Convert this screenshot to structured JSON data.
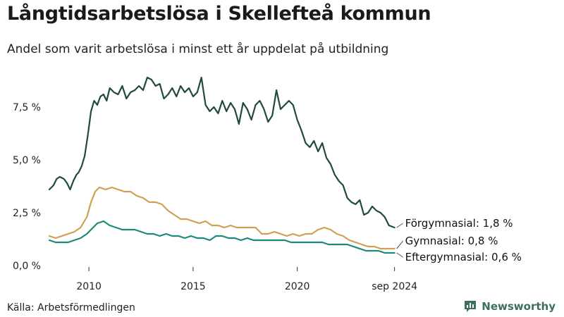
{
  "chart_data": {
    "type": "line",
    "title": "Långtidsarbetslösa i Skellefteå kommun",
    "subtitle": "Andel som varit arbetslösa i minst ett år uppdelat på utbildning",
    "source": "Källa: Arbetsförmedlingen",
    "brand": "Newsworthy",
    "ylim": [
      0,
      9.3
    ],
    "xlim": [
      2008.1,
      2024.75
    ],
    "grid": false,
    "legend_placement": "line-end labels, right",
    "y_ticks": [
      {
        "value": 0,
        "label": "0,0 %"
      },
      {
        "value": 2.5,
        "label": "2,5 %"
      },
      {
        "value": 5.0,
        "label": "5,0 %"
      },
      {
        "value": 7.5,
        "label": "7,5 %"
      }
    ],
    "x_ticks": [
      {
        "value": 2010,
        "label": "2010"
      },
      {
        "value": 2015,
        "label": "2015"
      },
      {
        "value": 2020,
        "label": "2020"
      },
      {
        "value": 2024.67,
        "label": "sep 2024"
      }
    ],
    "series": [
      {
        "name": "Förgymnasial",
        "end_label": "Förgymnasial: 1,8 %",
        "color": "#1f4a3d",
        "x": [
          2008.1,
          2008.3,
          2008.45,
          2008.6,
          2008.8,
          2008.95,
          2009.1,
          2009.25,
          2009.4,
          2009.5,
          2009.65,
          2009.8,
          2009.95,
          2010.1,
          2010.25,
          2010.4,
          2010.55,
          2010.7,
          2010.85,
          2011.0,
          2011.2,
          2011.4,
          2011.6,
          2011.8,
          2012.0,
          2012.2,
          2012.4,
          2012.6,
          2012.8,
          2013.0,
          2013.2,
          2013.4,
          2013.6,
          2013.8,
          2014.0,
          2014.2,
          2014.4,
          2014.6,
          2014.8,
          2015.0,
          2015.2,
          2015.4,
          2015.6,
          2015.8,
          2016.0,
          2016.2,
          2016.4,
          2016.6,
          2016.8,
          2017.0,
          2017.2,
          2017.4,
          2017.6,
          2017.8,
          2018.0,
          2018.2,
          2018.4,
          2018.6,
          2018.8,
          2019.0,
          2019.2,
          2019.4,
          2019.6,
          2019.8,
          2020.0,
          2020.2,
          2020.4,
          2020.6,
          2020.8,
          2021.0,
          2021.2,
          2021.4,
          2021.6,
          2021.8,
          2022.0,
          2022.2,
          2022.4,
          2022.6,
          2022.8,
          2023.0,
          2023.2,
          2023.4,
          2023.6,
          2023.8,
          2024.0,
          2024.2,
          2024.4,
          2024.67
        ],
        "values": [
          3.6,
          3.8,
          4.1,
          4.2,
          4.1,
          3.9,
          3.6,
          4.0,
          4.3,
          4.4,
          4.7,
          5.2,
          6.2,
          7.3,
          7.8,
          7.6,
          8.0,
          8.1,
          7.8,
          8.4,
          8.2,
          8.1,
          8.5,
          7.9,
          8.2,
          8.3,
          8.5,
          8.3,
          8.9,
          8.8,
          8.5,
          8.6,
          7.9,
          8.1,
          8.4,
          8.0,
          8.5,
          8.2,
          8.4,
          8.0,
          8.2,
          8.9,
          7.6,
          7.3,
          7.5,
          7.2,
          7.8,
          7.3,
          7.7,
          7.4,
          6.7,
          7.7,
          7.4,
          6.9,
          7.6,
          7.8,
          7.4,
          6.8,
          7.1,
          8.3,
          7.4,
          7.6,
          7.8,
          7.6,
          6.9,
          6.4,
          5.8,
          5.6,
          5.9,
          5.4,
          5.8,
          5.1,
          4.8,
          4.3,
          4.0,
          3.8,
          3.2,
          3.0,
          2.9,
          3.1,
          2.4,
          2.5,
          2.8,
          2.6,
          2.5,
          2.3,
          1.9,
          1.8
        ]
      },
      {
        "name": "Gymnasial",
        "end_label": "Gymnasial: 0,8 %",
        "color": "#cf9f52",
        "x": [
          2008.1,
          2008.4,
          2008.7,
          2009.0,
          2009.3,
          2009.6,
          2009.9,
          2010.1,
          2010.3,
          2010.5,
          2010.8,
          2011.1,
          2011.4,
          2011.7,
          2012.0,
          2012.3,
          2012.6,
          2012.9,
          2013.2,
          2013.5,
          2013.8,
          2014.1,
          2014.4,
          2014.7,
          2015.0,
          2015.3,
          2015.6,
          2015.9,
          2016.2,
          2016.5,
          2016.8,
          2017.1,
          2017.4,
          2017.7,
          2018.0,
          2018.3,
          2018.6,
          2018.9,
          2019.2,
          2019.5,
          2019.8,
          2020.1,
          2020.4,
          2020.7,
          2021.0,
          2021.3,
          2021.6,
          2021.9,
          2022.2,
          2022.5,
          2022.8,
          2023.1,
          2023.4,
          2023.7,
          2024.0,
          2024.3,
          2024.67
        ],
        "values": [
          1.4,
          1.3,
          1.4,
          1.5,
          1.6,
          1.8,
          2.3,
          3.0,
          3.5,
          3.7,
          3.6,
          3.7,
          3.6,
          3.5,
          3.5,
          3.3,
          3.2,
          3.0,
          3.0,
          2.9,
          2.6,
          2.4,
          2.2,
          2.2,
          2.1,
          2.0,
          2.1,
          1.9,
          1.9,
          1.8,
          1.9,
          1.8,
          1.8,
          1.8,
          1.8,
          1.5,
          1.5,
          1.6,
          1.5,
          1.4,
          1.5,
          1.4,
          1.5,
          1.5,
          1.7,
          1.8,
          1.7,
          1.5,
          1.4,
          1.2,
          1.1,
          1.0,
          0.9,
          0.9,
          0.8,
          0.8,
          0.8
        ]
      },
      {
        "name": "Eftergymnasial",
        "end_label": "Eftergymnasial: 0,6 %",
        "color": "#1a8a78",
        "x": [
          2008.1,
          2008.4,
          2008.7,
          2009.0,
          2009.3,
          2009.6,
          2009.9,
          2010.1,
          2010.4,
          2010.7,
          2011.0,
          2011.3,
          2011.6,
          2011.9,
          2012.2,
          2012.5,
          2012.8,
          2013.1,
          2013.4,
          2013.7,
          2014.0,
          2014.3,
          2014.6,
          2014.9,
          2015.2,
          2015.5,
          2015.8,
          2016.1,
          2016.4,
          2016.7,
          2017.0,
          2017.3,
          2017.6,
          2017.9,
          2018.2,
          2018.5,
          2018.8,
          2019.1,
          2019.4,
          2019.7,
          2020.0,
          2020.3,
          2020.6,
          2020.9,
          2021.2,
          2021.5,
          2021.8,
          2022.1,
          2022.4,
          2022.7,
          2023.0,
          2023.3,
          2023.6,
          2023.9,
          2024.2,
          2024.67
        ],
        "values": [
          1.2,
          1.1,
          1.1,
          1.1,
          1.2,
          1.3,
          1.5,
          1.7,
          2.0,
          2.1,
          1.9,
          1.8,
          1.7,
          1.7,
          1.7,
          1.6,
          1.5,
          1.5,
          1.4,
          1.5,
          1.4,
          1.4,
          1.3,
          1.4,
          1.3,
          1.3,
          1.2,
          1.4,
          1.4,
          1.3,
          1.3,
          1.2,
          1.3,
          1.2,
          1.2,
          1.2,
          1.2,
          1.2,
          1.2,
          1.1,
          1.1,
          1.1,
          1.1,
          1.1,
          1.1,
          1.0,
          1.0,
          1.0,
          1.0,
          0.9,
          0.8,
          0.7,
          0.7,
          0.7,
          0.6,
          0.6
        ]
      }
    ]
  }
}
